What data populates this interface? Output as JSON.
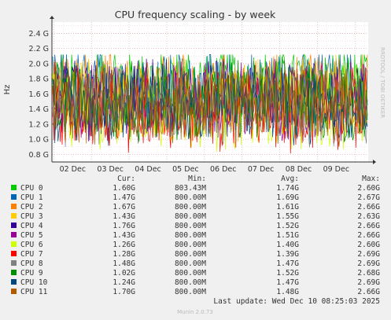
{
  "chart_data": {
    "type": "line",
    "title": "CPU frequency scaling - by week",
    "ylabel": "Hz",
    "ylim": [
      0.7,
      2.55
    ],
    "yticks": [
      "0.8 G",
      "1.0 G",
      "1.2 G",
      "1.4 G",
      "1.6 G",
      "1.8 G",
      "2.0 G",
      "2.2 G",
      "2.4 G"
    ],
    "ytick_values": [
      0.8,
      1.0,
      1.2,
      1.4,
      1.6,
      1.8,
      2.0,
      2.2,
      2.4
    ],
    "x_categories": [
      "02 Dec",
      "03 Dec",
      "04 Dec",
      "05 Dec",
      "06 Dec",
      "07 Dec",
      "08 Dec",
      "09 Dec"
    ],
    "watermark": "RRDTOOL / TOBI OETIKER",
    "grid": true,
    "legend_placement": "bottom",
    "table_headers": [
      "Cur:",
      "Min:",
      "Avg:",
      "Max:"
    ],
    "series": [
      {
        "name": "CPU 0",
        "color": "#00cc00",
        "cur": "1.60G",
        "min": "803.43M",
        "avg": "1.74G",
        "max": "2.60G"
      },
      {
        "name": "CPU 1",
        "color": "#0066b3",
        "cur": "1.47G",
        "min": "800.00M",
        "avg": "1.69G",
        "max": "2.67G"
      },
      {
        "name": "CPU 2",
        "color": "#ff8000",
        "cur": "1.67G",
        "min": "800.00M",
        "avg": "1.61G",
        "max": "2.66G"
      },
      {
        "name": "CPU 3",
        "color": "#ffcc00",
        "cur": "1.43G",
        "min": "800.00M",
        "avg": "1.55G",
        "max": "2.63G"
      },
      {
        "name": "CPU 4",
        "color": "#330099",
        "cur": "1.76G",
        "min": "800.00M",
        "avg": "1.52G",
        "max": "2.66G"
      },
      {
        "name": "CPU 5",
        "color": "#990099",
        "cur": "1.43G",
        "min": "800.00M",
        "avg": "1.51G",
        "max": "2.66G"
      },
      {
        "name": "CPU 6",
        "color": "#ccff00",
        "cur": "1.26G",
        "min": "800.00M",
        "avg": "1.40G",
        "max": "2.60G"
      },
      {
        "name": "CPU 7",
        "color": "#ff0000",
        "cur": "1.28G",
        "min": "800.00M",
        "avg": "1.39G",
        "max": "2.69G"
      },
      {
        "name": "CPU 8",
        "color": "#808080",
        "cur": "1.48G",
        "min": "800.00M",
        "avg": "1.47G",
        "max": "2.69G"
      },
      {
        "name": "CPU 9",
        "color": "#008f00",
        "cur": "1.02G",
        "min": "800.00M",
        "avg": "1.52G",
        "max": "2.68G"
      },
      {
        "name": "CPU 10",
        "color": "#00487d",
        "cur": "1.24G",
        "min": "800.00M",
        "avg": "1.47G",
        "max": "2.69G"
      },
      {
        "name": "CPU 11",
        "color": "#b35a00",
        "cur": "1.70G",
        "min": "800.00M",
        "avg": "1.48G",
        "max": "2.66G"
      }
    ],
    "last_update": "Last update: Wed Dec 10 08:25:03 2025",
    "footer": "Munin 2.0.73"
  }
}
